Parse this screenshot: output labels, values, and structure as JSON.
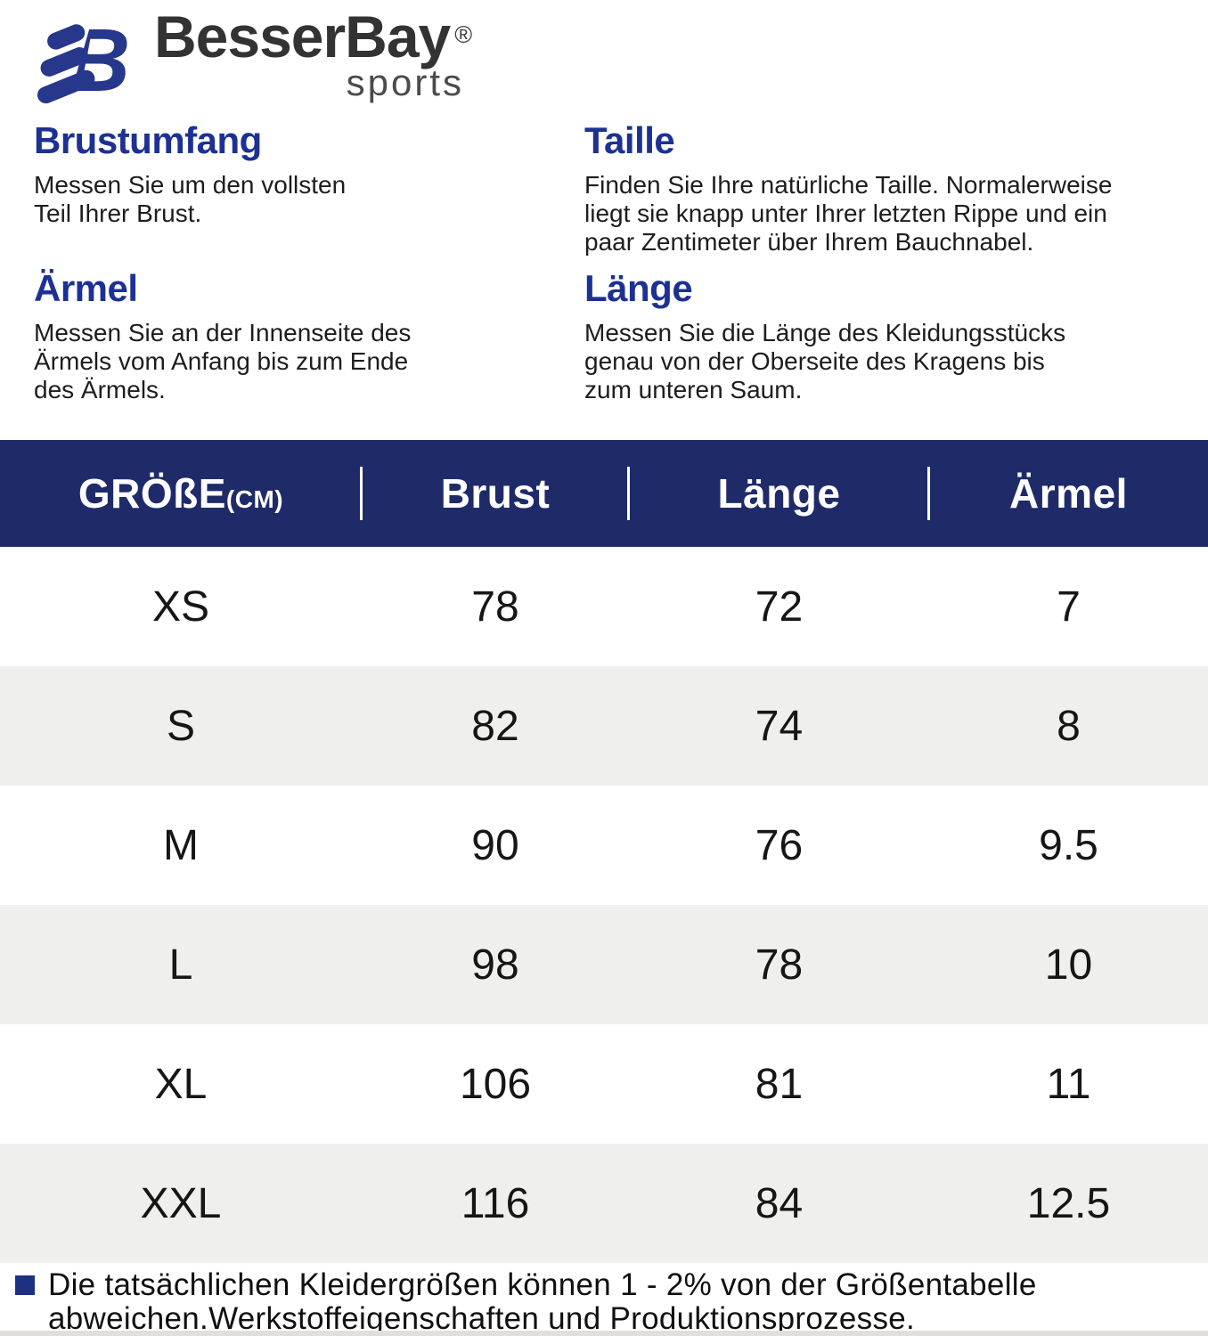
{
  "logo": {
    "brand": "BesserBay",
    "registered": "®",
    "subtitle": "sports"
  },
  "sections": [
    {
      "title": "Brustumfang",
      "lines": [
        "Messen Sie um den vollsten",
        "Teil Ihrer Brust."
      ]
    },
    {
      "title": "Taille",
      "lines": [
        "Finden Sie Ihre natürliche Taille. Normalerweise",
        "liegt sie knapp unter Ihrer letzten Rippe und ein",
        "paar Zentimeter über Ihrem Bauchnabel."
      ]
    },
    {
      "title": "Ärmel",
      "lines": [
        "Messen Sie an der Innenseite des",
        "Ärmels vom Anfang bis zum Ende",
        "des Ärmels."
      ]
    },
    {
      "title": "Länge",
      "lines": [
        "Messen Sie die Länge des Kleidungsstücks",
        "genau von der Oberseite des Kragens bis",
        "zum unteren Saum."
      ]
    }
  ],
  "table": {
    "header": {
      "size_label": "GRÖßE",
      "size_unit": "(CM)",
      "columns": [
        "Brust",
        "Länge",
        "Ärmel"
      ]
    },
    "rows": [
      {
        "size": "XS",
        "brust": "78",
        "laenge": "72",
        "aermel": "7"
      },
      {
        "size": "S",
        "brust": "82",
        "laenge": "74",
        "aermel": "8"
      },
      {
        "size": "M",
        "brust": "90",
        "laenge": "76",
        "aermel": "9.5"
      },
      {
        "size": "L",
        "brust": "98",
        "laenge": "78",
        "aermel": "10"
      },
      {
        "size": "XL",
        "brust": "106",
        "laenge": "81",
        "aermel": "11"
      },
      {
        "size": "XXL",
        "brust": "116",
        "laenge": "84",
        "aermel": "12.5"
      }
    ]
  },
  "note": {
    "lines": [
      "Die tatsächlichen Kleidergrößen können 1 - 2% von der Größentabelle",
      "abweichen.Werkstoffeigenschaften und Produktionsprozesse."
    ]
  },
  "colors": {
    "heading_blue": "#1c3193",
    "table_header_navy": "#1f2b69",
    "row_alt_gray": "#efefee",
    "logo_blue": "#27378b",
    "note_bullet_blue": "#1d3082"
  },
  "icons": {
    "logo_icon": "besserbay-b-icon",
    "registered_mark": "registered-trademark-icon",
    "note_bullet": "note-bullet-icon"
  }
}
